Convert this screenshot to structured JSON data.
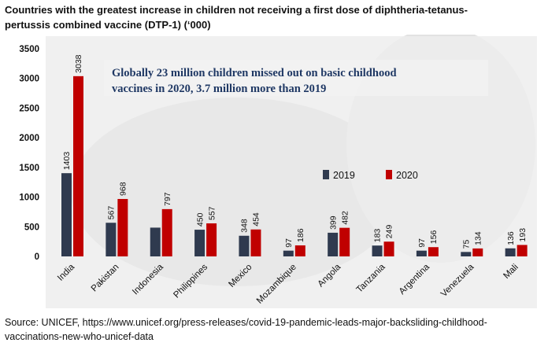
{
  "title": "Countries with the greatest increase in children not receiving a first dose of diphtheria-tetanus-pertussis combined vaccine (DTP-1) (‘000)",
  "source": "Source: UNICEF, https://www.unicef.org/press-releases/covid-19-pandemic-leads-major-backsliding-childhood-vaccinations-new-who-unicef-data",
  "colors": {
    "series_2019": "#2f3a4f",
    "series_2020": "#c00000",
    "banner_text": "#1f3864",
    "axis_text": "#111111"
  },
  "chart_data": {
    "type": "bar",
    "title": "Countries with the greatest increase in children not receiving a first dose of diphtheria-tetanus-pertussis combined vaccine (DTP-1) (‘000)",
    "xlabel": "",
    "ylabel": "",
    "ylim": [
      0,
      3500
    ],
    "yticks": [
      0,
      500,
      1000,
      1500,
      2000,
      2500,
      3000,
      3500
    ],
    "grid": false,
    "legend_position": "center-right",
    "annotation_lines": [
      "Globally 23 million children missed out on basic childhood",
      "vaccines in 2020, 3.7 million more than 2019"
    ],
    "categories": [
      "India",
      "Pakistan",
      "Indonesia",
      "Philippines",
      "Mexico",
      "Mozambique",
      "Angola",
      "Tanzania",
      "Argentina",
      "Venezuela",
      "Mali"
    ],
    "series": [
      {
        "name": "2019",
        "values": [
          1403,
          567,
          485,
          450,
          348,
          97,
          399,
          183,
          97,
          75,
          136
        ]
      },
      {
        "name": "2020",
        "values": [
          3038,
          968,
          797,
          557,
          454,
          186,
          482,
          249,
          156,
          134,
          193
        ]
      }
    ],
    "data_labels": [
      [
        "1403",
        "567",
        "",
        "450",
        "348",
        "97",
        "399",
        "183",
        "97",
        "75",
        "136"
      ],
      [
        "3038",
        "968",
        "797",
        "557",
        "454",
        "186",
        "482",
        "249",
        "156",
        "134",
        "193"
      ]
    ]
  }
}
